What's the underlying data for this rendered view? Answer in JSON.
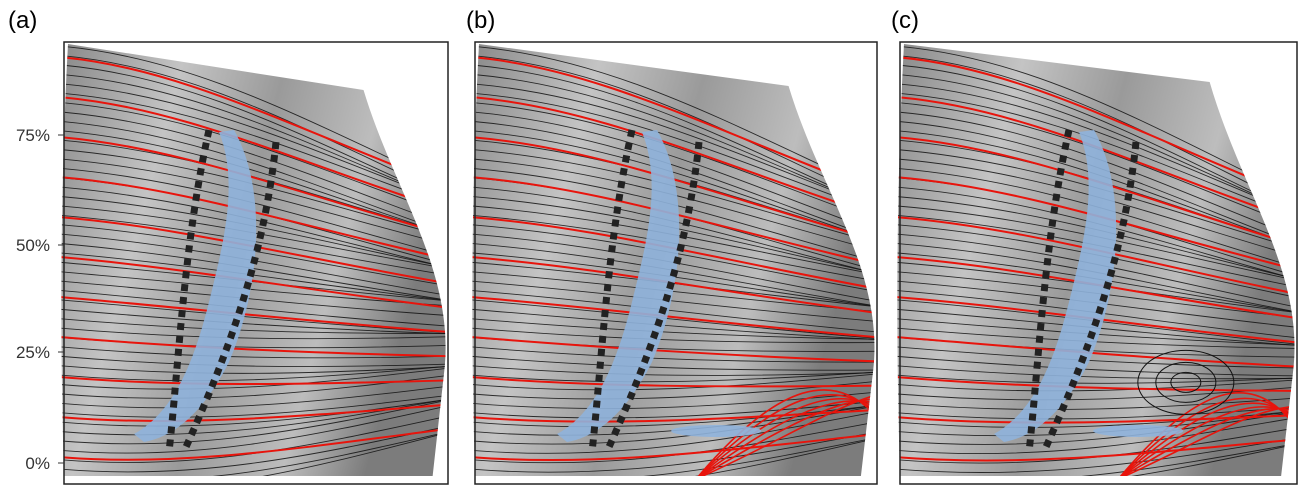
{
  "panels": [
    {
      "label": "(a)"
    },
    {
      "label": "(b)"
    },
    {
      "label": "(c)"
    }
  ],
  "y_axis": {
    "tick_labels": [
      "75%",
      "50%",
      "25%",
      "0%"
    ]
  }
}
